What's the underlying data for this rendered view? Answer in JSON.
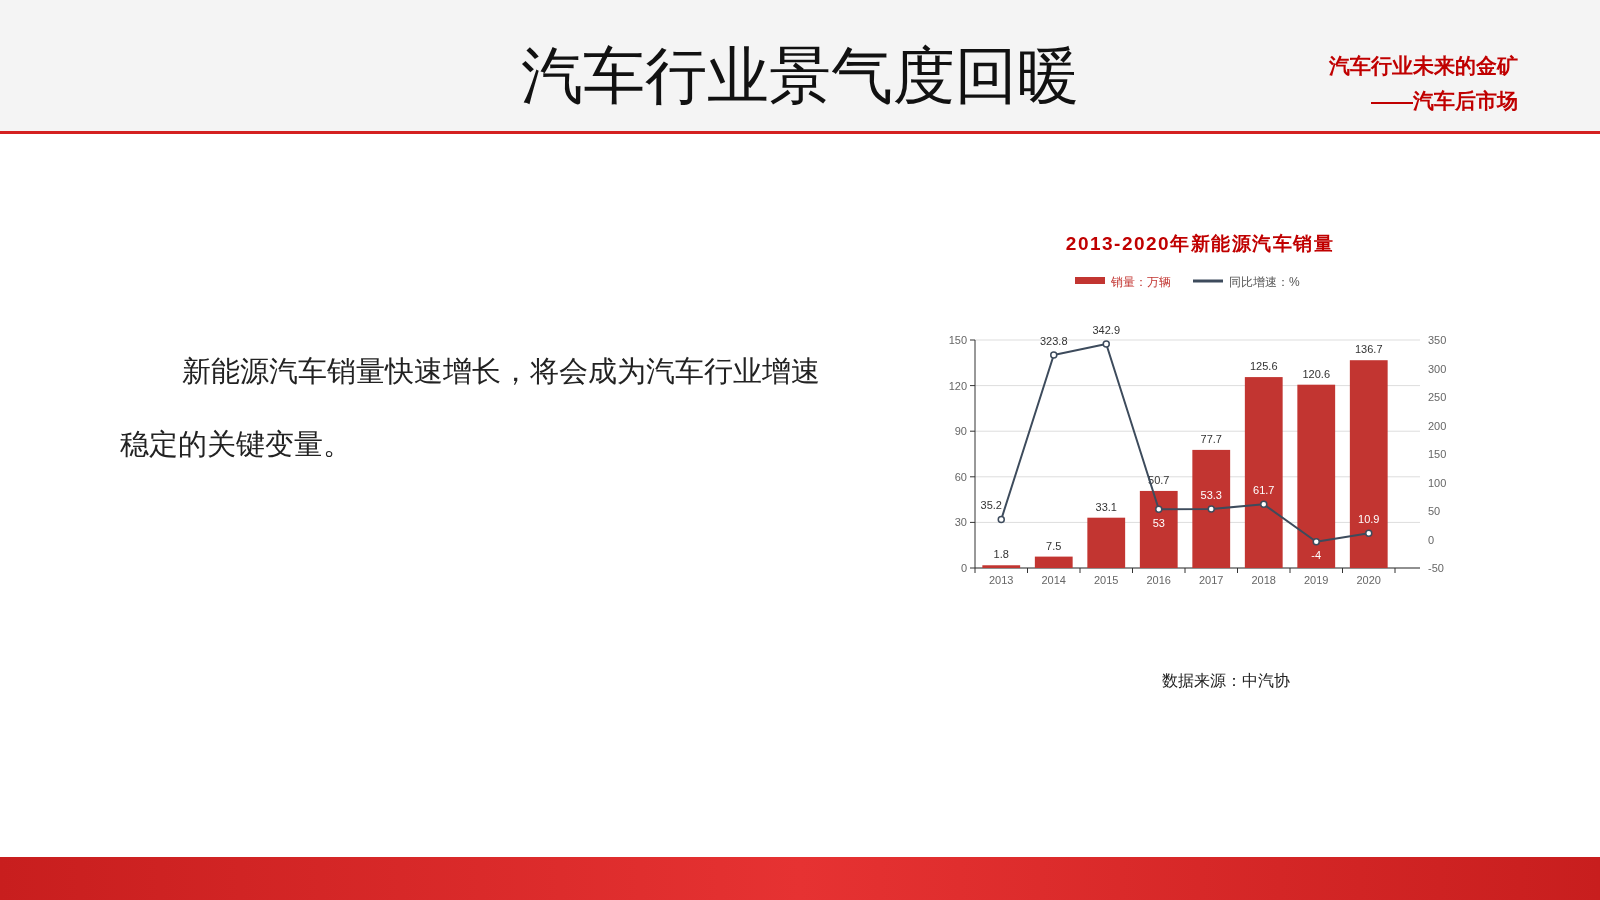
{
  "chart_data": {
    "type": "bar",
    "title": "2013-2020年新能源汽车销量",
    "annotations": [
      "汽车行业景气度回暖",
      "汽车行业未来的金矿",
      "——汽车后市场",
      "新能源汽车销量快速增长，将会成为汽车行业增速稳定的关键变量。",
      "数据来源：中汽协"
    ],
    "categories": [
      "2013",
      "2014",
      "2015",
      "2016",
      "2017",
      "2018",
      "2019",
      "2020"
    ],
    "series": [
      {
        "name": "销量：万辆",
        "color": "#c23531",
        "values": [
          1.8,
          7.5,
          33.1,
          50.7,
          77.7,
          125.6,
          120.6,
          136.7
        ]
      },
      {
        "name": "同比增速：%",
        "type": "line",
        "axis": "y2",
        "color": "#3d4b5c",
        "marker": "circle",
        "values": [
          35.2,
          323.8,
          342.9,
          53,
          53.3,
          61.7,
          -4,
          10.9
        ]
      }
    ],
    "ylim": [
      0,
      150
    ],
    "yticks": [
      0,
      30,
      60,
      90,
      120,
      150
    ],
    "y2lim": [
      -50,
      350
    ],
    "y2ticks": [
      -50,
      0,
      50,
      100,
      150,
      200,
      250,
      300,
      350
    ],
    "data_labels": true,
    "grid": "y",
    "legend": "top"
  }
}
